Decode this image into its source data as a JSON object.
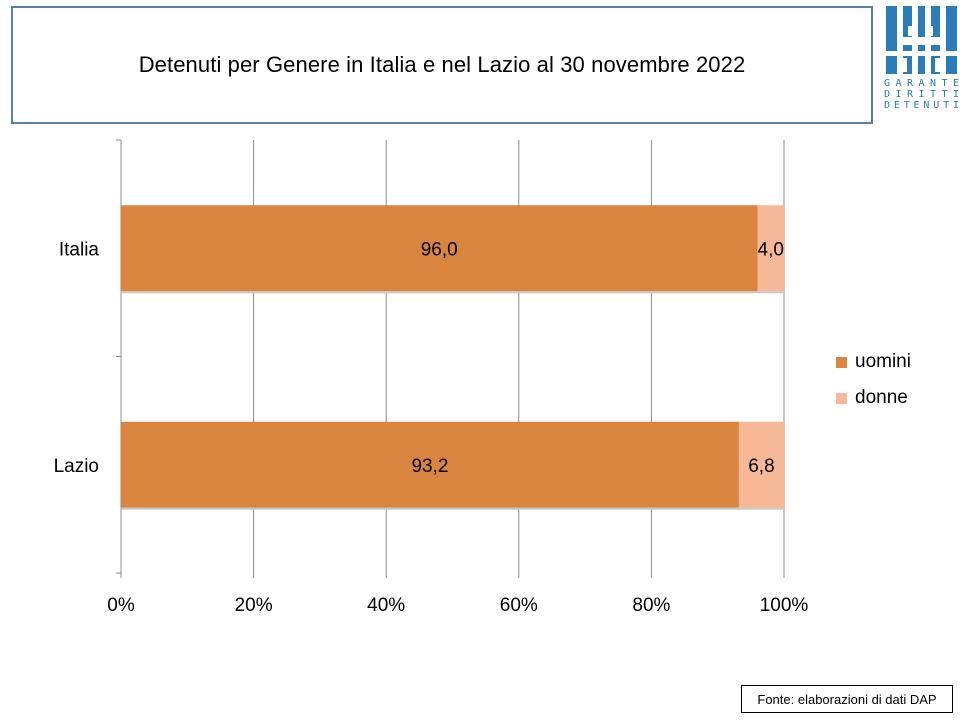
{
  "slide": {
    "title": "Detenuti per Genere in Italia e nel Lazio al 30 novembre 2022",
    "source": "Fonte: elaborazioni di dati DAP"
  },
  "logo": {
    "icon": "garante-logo-icon",
    "lines": [
      "GARANTE",
      "DIRITTI",
      "DETENUTI"
    ],
    "color": "#2a7db8"
  },
  "chart_data": {
    "type": "bar",
    "orientation": "horizontal",
    "stacked": "percent",
    "title": "Detenuti per Genere in Italia e nel Lazio al 30 novembre 2022",
    "categories": [
      "Italia",
      "Lazio"
    ],
    "series": [
      {
        "name": "uomini",
        "values": [
          96.0,
          93.2
        ],
        "labels": [
          "96,0",
          "93,2"
        ],
        "color": "#d9843f"
      },
      {
        "name": "donne",
        "values": [
          4.0,
          6.8
        ],
        "labels": [
          "4,0",
          "6,8"
        ],
        "color": "#f6b897"
      }
    ],
    "xlim": [
      0,
      100
    ],
    "xticks": [
      0,
      20,
      40,
      60,
      80,
      100
    ],
    "xtick_labels": [
      "0%",
      "20%",
      "40%",
      "60%",
      "80%",
      "100%"
    ],
    "grid": true,
    "legend": "right"
  }
}
